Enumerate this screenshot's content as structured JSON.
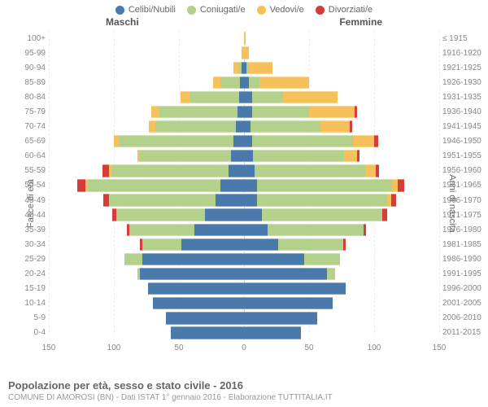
{
  "legend": [
    {
      "label": "Celibi/Nubili",
      "color": "#4a7aab"
    },
    {
      "label": "Coniugati/e",
      "color": "#b3d18b"
    },
    {
      "label": "Vedovi/e",
      "color": "#f6c15a"
    },
    {
      "label": "Divorziati/e",
      "color": "#d73c3c"
    }
  ],
  "header_male": "Maschi",
  "header_female": "Femmine",
  "axis_left_label": "Fasce di età",
  "axis_right_label": "Anni di nascita",
  "footer_title": "Popolazione per età, sesso e stato civile - 2016",
  "footer_sub": "COMUNE DI AMOROSI (BN) - Dati ISTAT 1° gennaio 2016 - Elaborazione TUTTITALIA.IT",
  "x_max": 150,
  "x_ticks": [
    150,
    100,
    50,
    0,
    50,
    100,
    150
  ],
  "grid_positions_pct": [
    0,
    16.67,
    33.33,
    50,
    66.67,
    83.33,
    100
  ],
  "colors": {
    "celibi": "#4a7aab",
    "coniugati": "#b3d18b",
    "vedovi": "#f6c15a",
    "divorziati": "#d73c3c"
  },
  "styling": {
    "background": "#ffffff",
    "grid_color": "#eeeeee",
    "center_line_color": "#cccccc",
    "tick_font_size": 10,
    "label_font_size": 10,
    "legend_font_size": 11
  },
  "rows": [
    {
      "age": "100+",
      "birth": "≤ 1915",
      "m": {
        "c": 0,
        "co": 0,
        "v": 0,
        "d": 0
      },
      "f": {
        "c": 0,
        "co": 0,
        "v": 1,
        "d": 0
      }
    },
    {
      "age": "95-99",
      "birth": "1916-1920",
      "m": {
        "c": 0,
        "co": 0,
        "v": 2,
        "d": 0
      },
      "f": {
        "c": 0,
        "co": 0,
        "v": 4,
        "d": 0
      }
    },
    {
      "age": "90-94",
      "birth": "1921-1925",
      "m": {
        "c": 2,
        "co": 2,
        "v": 4,
        "d": 0
      },
      "f": {
        "c": 2,
        "co": 2,
        "v": 18,
        "d": 0
      }
    },
    {
      "age": "85-89",
      "birth": "1926-1930",
      "m": {
        "c": 3,
        "co": 15,
        "v": 6,
        "d": 0
      },
      "f": {
        "c": 4,
        "co": 8,
        "v": 38,
        "d": 0
      }
    },
    {
      "age": "80-84",
      "birth": "1931-1935",
      "m": {
        "c": 4,
        "co": 38,
        "v": 7,
        "d": 0
      },
      "f": {
        "c": 6,
        "co": 24,
        "v": 42,
        "d": 0
      }
    },
    {
      "age": "75-79",
      "birth": "1936-1940",
      "m": {
        "c": 5,
        "co": 60,
        "v": 6,
        "d": 0
      },
      "f": {
        "c": 6,
        "co": 44,
        "v": 35,
        "d": 2
      }
    },
    {
      "age": "70-74",
      "birth": "1941-1945",
      "m": {
        "c": 6,
        "co": 62,
        "v": 5,
        "d": 0
      },
      "f": {
        "c": 5,
        "co": 54,
        "v": 22,
        "d": 2
      }
    },
    {
      "age": "65-69",
      "birth": "1946-1950",
      "m": {
        "c": 8,
        "co": 88,
        "v": 4,
        "d": 0
      },
      "f": {
        "c": 6,
        "co": 78,
        "v": 16,
        "d": 3
      }
    },
    {
      "age": "60-64",
      "birth": "1951-1955",
      "m": {
        "c": 10,
        "co": 70,
        "v": 2,
        "d": 0
      },
      "f": {
        "c": 7,
        "co": 70,
        "v": 10,
        "d": 2
      }
    },
    {
      "age": "55-59",
      "birth": "1956-1960",
      "m": {
        "c": 12,
        "co": 90,
        "v": 2,
        "d": 5
      },
      "f": {
        "c": 8,
        "co": 85,
        "v": 8,
        "d": 3
      }
    },
    {
      "age": "50-54",
      "birth": "1961-1965",
      "m": {
        "c": 18,
        "co": 102,
        "v": 2,
        "d": 6
      },
      "f": {
        "c": 10,
        "co": 104,
        "v": 4,
        "d": 5
      }
    },
    {
      "age": "45-49",
      "birth": "1966-1970",
      "m": {
        "c": 22,
        "co": 82,
        "v": 0,
        "d": 4
      },
      "f": {
        "c": 10,
        "co": 100,
        "v": 3,
        "d": 4
      }
    },
    {
      "age": "40-44",
      "birth": "1971-1975",
      "m": {
        "c": 30,
        "co": 68,
        "v": 0,
        "d": 3
      },
      "f": {
        "c": 14,
        "co": 92,
        "v": 0,
        "d": 4
      }
    },
    {
      "age": "35-39",
      "birth": "1976-1980",
      "m": {
        "c": 38,
        "co": 50,
        "v": 0,
        "d": 2
      },
      "f": {
        "c": 18,
        "co": 74,
        "v": 0,
        "d": 2
      }
    },
    {
      "age": "30-34",
      "birth": "1981-1985",
      "m": {
        "c": 48,
        "co": 30,
        "v": 0,
        "d": 2
      },
      "f": {
        "c": 26,
        "co": 50,
        "v": 0,
        "d": 2
      }
    },
    {
      "age": "25-29",
      "birth": "1986-1990",
      "m": {
        "c": 78,
        "co": 14,
        "v": 0,
        "d": 0
      },
      "f": {
        "c": 46,
        "co": 28,
        "v": 0,
        "d": 0
      }
    },
    {
      "age": "20-24",
      "birth": "1991-1995",
      "m": {
        "c": 80,
        "co": 2,
        "v": 0,
        "d": 0
      },
      "f": {
        "c": 64,
        "co": 6,
        "v": 0,
        "d": 0
      }
    },
    {
      "age": "15-19",
      "birth": "1996-2000",
      "m": {
        "c": 74,
        "co": 0,
        "v": 0,
        "d": 0
      },
      "f": {
        "c": 78,
        "co": 0,
        "v": 0,
        "d": 0
      }
    },
    {
      "age": "10-14",
      "birth": "2001-2005",
      "m": {
        "c": 70,
        "co": 0,
        "v": 0,
        "d": 0
      },
      "f": {
        "c": 68,
        "co": 0,
        "v": 0,
        "d": 0
      }
    },
    {
      "age": "5-9",
      "birth": "2006-2010",
      "m": {
        "c": 60,
        "co": 0,
        "v": 0,
        "d": 0
      },
      "f": {
        "c": 56,
        "co": 0,
        "v": 0,
        "d": 0
      }
    },
    {
      "age": "0-4",
      "birth": "2011-2015",
      "m": {
        "c": 56,
        "co": 0,
        "v": 0,
        "d": 0
      },
      "f": {
        "c": 44,
        "co": 0,
        "v": 0,
        "d": 0
      }
    }
  ]
}
